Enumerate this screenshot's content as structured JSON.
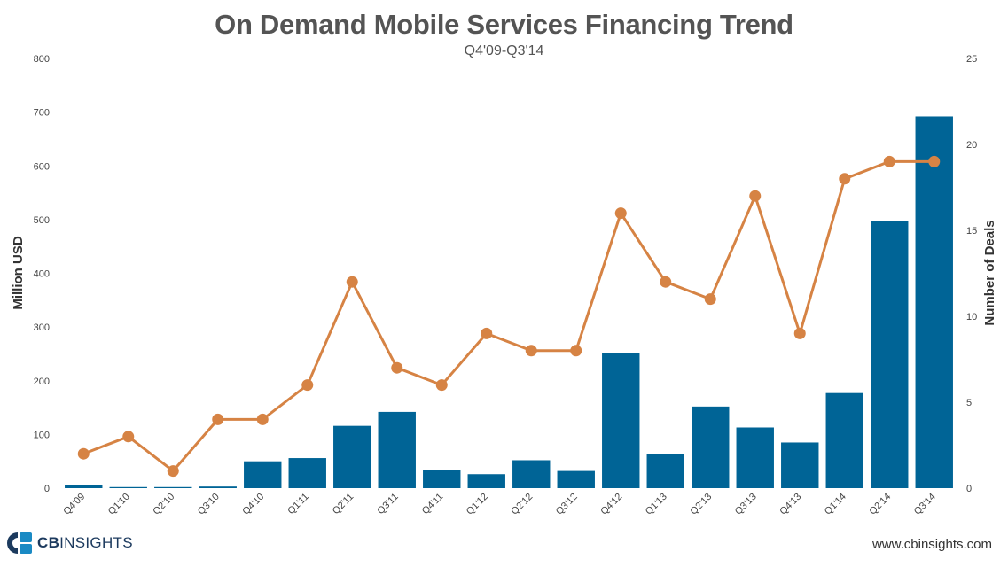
{
  "title": "On Demand Mobile Services Financing Trend",
  "subtitle": "Q4'09-Q3'14",
  "footer": {
    "logo_prefix": "CB",
    "logo_suffix": "INSIGHTS",
    "url": "www.cbinsights.com"
  },
  "colors": {
    "bar": "#006496",
    "line": "#d68344",
    "text": "#545454"
  },
  "chart_data": {
    "type": "bar+line",
    "title": "On Demand Mobile Services Financing Trend",
    "subtitle": "Q4'09-Q3'14",
    "categories": [
      "Q4'09",
      "Q1'10",
      "Q2'10",
      "Q3'10",
      "Q4'10",
      "Q1'11",
      "Q2'11",
      "Q3'11",
      "Q4'11",
      "Q1'12",
      "Q2'12",
      "Q3'12",
      "Q4'12",
      "Q1'13",
      "Q2'13",
      "Q3'13",
      "Q4'13",
      "Q1'14",
      "Q2'14",
      "Q3'14"
    ],
    "series": [
      {
        "name": "Million USD",
        "type": "bar",
        "axis": "left",
        "values": [
          6,
          2,
          2,
          3,
          50,
          56,
          116,
          142,
          33,
          26,
          52,
          32,
          251,
          63,
          152,
          113,
          85,
          177,
          498,
          692
        ]
      },
      {
        "name": "Number of Deals",
        "type": "line",
        "axis": "right",
        "values": [
          2,
          3,
          1,
          4,
          4,
          6,
          12,
          7,
          6,
          9,
          8,
          8,
          16,
          12,
          11,
          17,
          9,
          18,
          19,
          19
        ]
      }
    ],
    "ylabel_left": "Million USD",
    "ylabel_right": "Number of Deals",
    "ylim_left": [
      0,
      800
    ],
    "ylim_right": [
      0,
      25
    ],
    "yticks_left": [
      0,
      100,
      200,
      300,
      400,
      500,
      600,
      700,
      800
    ],
    "yticks_right": [
      0,
      5,
      10,
      15,
      20,
      25
    ],
    "grid": false
  }
}
